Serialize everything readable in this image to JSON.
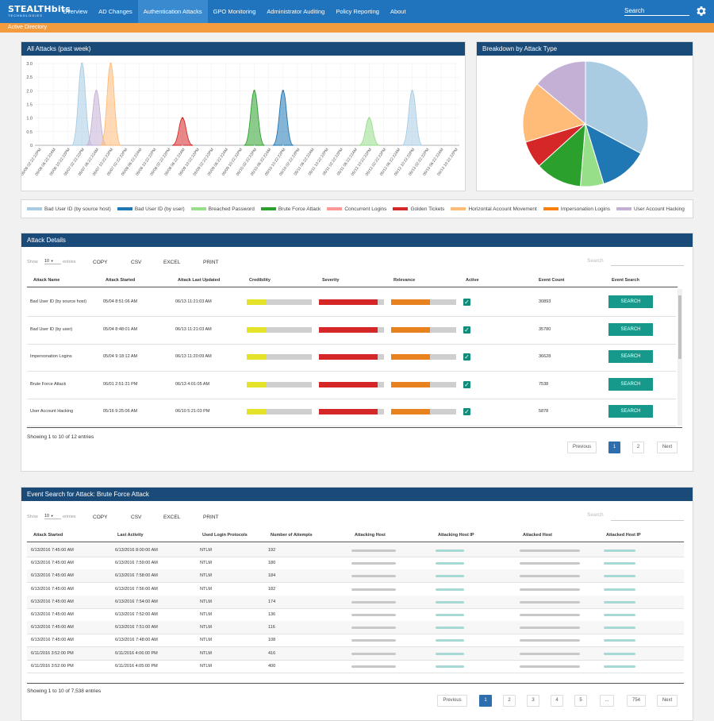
{
  "app": {
    "logo_main": "STEALTHbits",
    "logo_sub": "TECHNOLOGIES"
  },
  "nav": [
    "Overview",
    "AD Changes",
    "Authentication Attacks",
    "GPO Monitoring",
    "Administrator Auditing",
    "Policy Reporting",
    "About"
  ],
  "nav_active_index": 2,
  "search": {
    "label": "Search"
  },
  "subbar": "Active Directory",
  "attacks_chart": {
    "title": "All Attacks (past week)",
    "chart_data": {
      "type": "area",
      "title": "All Attacks (past week)",
      "yticks": [
        "0",
        "0.5",
        "1.0",
        "1.5",
        "2.0",
        "2.5",
        "3.0"
      ],
      "ylim": [
        0,
        3
      ],
      "x": [
        "05/06 02:22:22PM",
        "05/06 06:22:22AM",
        "05/06 10:22:22PM",
        "05/07 02:22:22PM",
        "05/07 06:22:22AM",
        "05/07 10:22:22PM",
        "05/07 02:22:22PM",
        "05/08 06:22:22AM",
        "05/08 10:22:22PM",
        "05/08 02:22:22PM",
        "05/08 06:22:22AM",
        "05/09 10:22:22PM",
        "05/09 02:22:22PM",
        "05/09 06:22:22AM",
        "05/09 10:22:22PM",
        "05/10 02:22:22PM",
        "05/10 06:22:22AM",
        "05/10 10:22:22PM",
        "05/10 02:22:22PM",
        "05/11 06:22:22AM",
        "05/11 10:22:22PM",
        "05/11 02:22:22PM",
        "05/11 06:22:22AM",
        "05/12 10:22:22PM",
        "05/12 02:22:22PM",
        "05/12 06:22:22AM",
        "05/12 10:22:22PM",
        "05/13 02:22:22PM",
        "05/13 06:22:22AM",
        "05/13 10:22:22PM"
      ],
      "series": [
        {
          "name": "Bad User ID (by source host)",
          "color": "#a9cce3",
          "peaks": [
            [
              3,
              3
            ],
            [
              26,
              2
            ]
          ]
        },
        {
          "name": "User Account Hacking",
          "color": "#c5b0d5",
          "peaks": [
            [
              4,
              2
            ]
          ]
        },
        {
          "name": "Horizontal Account Movement",
          "color": "#ffbb78",
          "peaks": [
            [
              5,
              3
            ]
          ]
        },
        {
          "name": "Golden Tickets",
          "color": "#d62728",
          "peaks": [
            [
              10,
              1
            ]
          ]
        },
        {
          "name": "Brute Force Attack",
          "color": "#2ca02c",
          "peaks": [
            [
              15,
              2
            ]
          ]
        },
        {
          "name": "Bad User ID (by user)",
          "color": "#1f77b4",
          "peaks": [
            [
              17,
              2
            ]
          ]
        },
        {
          "name": "Breached Password",
          "color": "#98df8a",
          "peaks": [
            [
              23,
              1
            ]
          ]
        }
      ]
    }
  },
  "breakdown_chart": {
    "title": "Breakdown by Attack Type",
    "chart_data": {
      "type": "pie",
      "title": "Breakdown by Attack Type",
      "slices": [
        {
          "name": "Bad User ID (by source host)",
          "value": 0.328,
          "color": "#a9cce3"
        },
        {
          "name": "Bad User ID (by user)",
          "value": 0.125,
          "color": "#1f77b4"
        },
        {
          "name": "Breached Password",
          "value": 0.06,
          "color": "#98df8a"
        },
        {
          "name": "Brute Force Attack",
          "value": 0.12,
          "color": "#2ca02c"
        },
        {
          "name": "Golden Tickets",
          "value": 0.07,
          "color": "#d62728"
        },
        {
          "name": "Horizontal Account Movement",
          "value": 0.157,
          "color": "#ffbb78"
        },
        {
          "name": "User Account Hacking",
          "value": 0.14,
          "color": "#c5b0d5"
        }
      ]
    }
  },
  "legend": [
    {
      "label": "Bad User ID (by source host)",
      "color": "#a9cce3"
    },
    {
      "label": "Bad User ID (by user)",
      "color": "#1f77b4"
    },
    {
      "label": "Breached Password",
      "color": "#98df8a"
    },
    {
      "label": "Brute Force Attack",
      "color": "#2ca02c"
    },
    {
      "label": "Concurrent Logins",
      "color": "#ff9896"
    },
    {
      "label": "Golden Tickets",
      "color": "#d62728"
    },
    {
      "label": "Horizontal Account Movement",
      "color": "#ffbb78"
    },
    {
      "label": "Impersonation Logins",
      "color": "#ff7f0e"
    },
    {
      "label": "User Account Hacking",
      "color": "#c5b0d5"
    }
  ],
  "attack_details": {
    "title": "Attack Details",
    "show": "Show",
    "entries_value": "10",
    "entries": "entries",
    "buttons": [
      "COPY",
      "CSV",
      "EXCEL",
      "PRINT"
    ],
    "search_placeholder": "Search",
    "columns": [
      "Attack Name",
      "Attack Started",
      "Attack Last Updated",
      "Credibility",
      "Severity",
      "Relevance",
      "Active",
      "Event Count",
      "Event Search"
    ],
    "rows": [
      {
        "name": "Bad User ID (by source host)",
        "started": "05/04 8:51:06 AM",
        "updated": "06/13 11:21:03 AM",
        "count": "30893",
        "cred": 0.3,
        "sev": 0.9,
        "rel": 0.6,
        "button": "SEARCH"
      },
      {
        "name": "Bad User ID (by user)",
        "started": "05/04 8:48:01 AM",
        "updated": "06/13 11:21:03 AM",
        "count": "35780",
        "cred": 0.3,
        "sev": 0.9,
        "rel": 0.6,
        "button": "SEARCH"
      },
      {
        "name": "Impersonation Logins",
        "started": "05/04 9:18:12 AM",
        "updated": "06/13 11:20:09 AM",
        "count": "36628",
        "cred": 0.3,
        "sev": 0.9,
        "rel": 0.6,
        "button": "SEARCH"
      },
      {
        "name": "Brute Force Attack",
        "started": "06/01 2:51:31 PM",
        "updated": "06/13 4:01:05 AM",
        "count": "7538",
        "cred": 0.3,
        "sev": 0.9,
        "rel": 0.6,
        "button": "SEARCH"
      },
      {
        "name": "User Account Hacking",
        "started": "05/16 9:25:06 AM",
        "updated": "06/10 5:21:03 PM",
        "count": "5878",
        "cred": 0.3,
        "sev": 0.9,
        "rel": 0.6,
        "button": "SEARCH"
      }
    ],
    "info": "Showing 1 to 10 of 12 entries",
    "pagination": [
      "Previous",
      "1",
      "2",
      "Next"
    ]
  },
  "event_search": {
    "title": "Event Search for Attack: Brute Force Attack",
    "show": "Show",
    "entries_value": "10",
    "entries": "entries",
    "buttons": [
      "COPY",
      "CSV",
      "EXCEL",
      "PRINT"
    ],
    "search_placeholder": "Search",
    "columns": [
      "Attack Started",
      "Last Activity",
      "Used Login Protocols",
      "Number of Attempts",
      "Attacking Host",
      "Attacking Host IP",
      "Attacked Host",
      "Attacked Host IP"
    ],
    "rows": [
      [
        "6/13/2016 7:45:00 AM",
        "6/13/2016 8:00:00 AM",
        "NTLM",
        "192"
      ],
      [
        "6/13/2016 7:45:00 AM",
        "6/13/2016 7:59:00 AM",
        "NTLM",
        "180"
      ],
      [
        "6/13/2016 7:45:00 AM",
        "6/13/2016 7:58:00 AM",
        "NTLM",
        "184"
      ],
      [
        "6/13/2016 7:45:00 AM",
        "6/13/2016 7:56:00 AM",
        "NTLM",
        "182"
      ],
      [
        "6/13/2016 7:45:00 AM",
        "6/13/2016 7:54:00 AM",
        "NTLM",
        "174"
      ],
      [
        "6/13/2016 7:45:00 AM",
        "6/13/2016 7:52:00 AM",
        "NTLM",
        "136"
      ],
      [
        "6/13/2016 7:45:00 AM",
        "6/13/2016 7:51:00 AM",
        "NTLM",
        "116"
      ],
      [
        "6/13/2016 7:45:00 AM",
        "6/13/2016 7:48:00 AM",
        "NTLM",
        "108"
      ],
      [
        "6/11/2016 3:52:00 PM",
        "6/11/2016 4:06:00 PM",
        "NTLM",
        "416"
      ],
      [
        "6/11/2016 3:52:00 PM",
        "6/11/2016 4:05:00 PM",
        "NTLM",
        "400"
      ]
    ],
    "info": "Showing 1 to 10 of 7,538 entries",
    "pagination": [
      "Previous",
      "1",
      "2",
      "3",
      "4",
      "5",
      "...",
      "754",
      "Next"
    ]
  }
}
